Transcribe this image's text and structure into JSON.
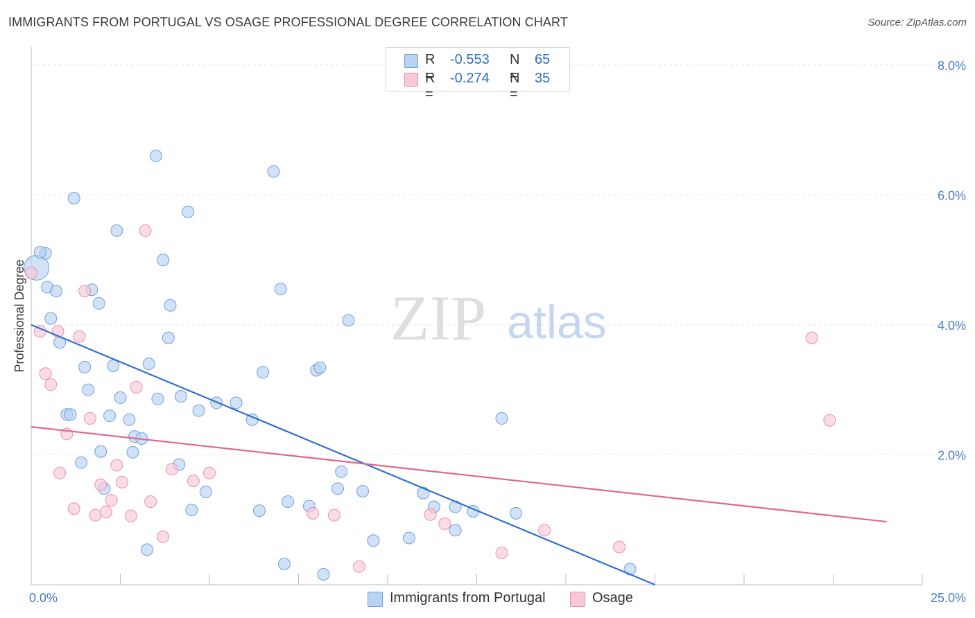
{
  "header": {
    "title": "IMMIGRANTS FROM PORTUGAL VS OSAGE PROFESSIONAL DEGREE CORRELATION CHART",
    "source": "Source: ZipAtlas.com"
  },
  "watermark": {
    "zip": "ZIP",
    "atlas": "atlas"
  },
  "legend": {
    "rows": [
      {
        "r_label": "R =",
        "r_value": "-0.553",
        "n_label": "N =",
        "n_value": "65",
        "color": "#b9d3f3",
        "edge": "#6f9fe0"
      },
      {
        "r_label": "R =",
        "r_value": "-0.274",
        "n_label": "N =",
        "n_value": "35",
        "color": "#f9c8d8",
        "edge": "#e891ae"
      }
    ]
  },
  "chart_data": {
    "type": "scatter",
    "title": "IMMIGRANTS FROM PORTUGAL VS OSAGE PROFESSIONAL DEGREE CORRELATION CHART",
    "xlabel": "",
    "ylabel": "Professional Degree",
    "xlim": [
      0,
      25
    ],
    "ylim": [
      0,
      8.2
    ],
    "x_tick_labels": [
      "0.0%",
      "25.0%"
    ],
    "y_ticks": [
      2,
      4,
      6,
      8
    ],
    "y_tick_labels": [
      "2.0%",
      "4.0%",
      "6.0%",
      "8.0%"
    ],
    "grid": true,
    "legend_position": "top-center",
    "series": [
      {
        "name": "Immigrants from Portugal",
        "color": "#b9d3f3",
        "edge": "#6f9fe0",
        "trend_color": "#2f6fd1",
        "trend": {
          "x": [
            0,
            17.5
          ],
          "y": [
            4.0,
            0.0
          ]
        },
        "points": [
          [
            0.15,
            4.88
          ],
          [
            0.4,
            5.1
          ],
          [
            0.25,
            5.12
          ],
          [
            1.2,
            5.95
          ],
          [
            3.5,
            6.6
          ],
          [
            6.8,
            6.36
          ],
          [
            4.4,
            5.74
          ],
          [
            2.4,
            5.45
          ],
          [
            3.7,
            5.0
          ],
          [
            0.45,
            4.58
          ],
          [
            0.7,
            4.52
          ],
          [
            1.7,
            4.54
          ],
          [
            1.9,
            4.33
          ],
          [
            7.0,
            4.55
          ],
          [
            0.55,
            4.1
          ],
          [
            3.9,
            4.3
          ],
          [
            8.9,
            4.07
          ],
          [
            0.8,
            3.73
          ],
          [
            3.85,
            3.8
          ],
          [
            1.5,
            3.35
          ],
          [
            2.3,
            3.37
          ],
          [
            3.3,
            3.4
          ],
          [
            6.5,
            3.27
          ],
          [
            8.0,
            3.3
          ],
          [
            8.1,
            3.34
          ],
          [
            1.6,
            3.0
          ],
          [
            2.5,
            2.88
          ],
          [
            3.55,
            2.86
          ],
          [
            4.2,
            2.9
          ],
          [
            5.2,
            2.8
          ],
          [
            5.75,
            2.8
          ],
          [
            1.0,
            2.62
          ],
          [
            1.1,
            2.62
          ],
          [
            2.2,
            2.6
          ],
          [
            2.75,
            2.54
          ],
          [
            4.7,
            2.68
          ],
          [
            6.2,
            2.54
          ],
          [
            13.2,
            2.56
          ],
          [
            2.9,
            2.28
          ],
          [
            3.1,
            2.25
          ],
          [
            1.95,
            2.05
          ],
          [
            2.85,
            2.04
          ],
          [
            1.4,
            1.88
          ],
          [
            4.15,
            1.85
          ],
          [
            8.7,
            1.74
          ],
          [
            2.05,
            1.48
          ],
          [
            4.9,
            1.43
          ],
          [
            8.6,
            1.48
          ],
          [
            9.3,
            1.44
          ],
          [
            11.0,
            1.41
          ],
          [
            7.2,
            1.28
          ],
          [
            7.8,
            1.21
          ],
          [
            11.3,
            1.2
          ],
          [
            11.9,
            1.2
          ],
          [
            4.5,
            1.15
          ],
          [
            6.4,
            1.14
          ],
          [
            12.4,
            1.13
          ],
          [
            13.6,
            1.1
          ],
          [
            11.9,
            0.84
          ],
          [
            9.6,
            0.68
          ],
          [
            10.6,
            0.72
          ],
          [
            3.25,
            0.54
          ],
          [
            7.1,
            0.32
          ],
          [
            8.2,
            0.16
          ],
          [
            16.8,
            0.24
          ]
        ]
      },
      {
        "name": "Osage",
        "color": "#f9c8d8",
        "edge": "#e891ae",
        "trend_color": "#e0668f",
        "trend": {
          "x": [
            0,
            24
          ],
          "y": [
            2.43,
            0.97
          ]
        },
        "points": [
          [
            0.0,
            4.8
          ],
          [
            3.2,
            5.45
          ],
          [
            1.5,
            4.52
          ],
          [
            0.25,
            3.9
          ],
          [
            0.75,
            3.9
          ],
          [
            1.35,
            3.82
          ],
          [
            0.4,
            3.25
          ],
          [
            0.55,
            3.08
          ],
          [
            2.95,
            3.04
          ],
          [
            1.65,
            2.56
          ],
          [
            1.0,
            2.32
          ],
          [
            2.4,
            1.84
          ],
          [
            0.8,
            1.72
          ],
          [
            3.95,
            1.78
          ],
          [
            5.0,
            1.72
          ],
          [
            1.95,
            1.54
          ],
          [
            2.55,
            1.58
          ],
          [
            4.55,
            1.6
          ],
          [
            1.2,
            1.17
          ],
          [
            2.25,
            1.3
          ],
          [
            3.35,
            1.28
          ],
          [
            1.8,
            1.07
          ],
          [
            2.1,
            1.12
          ],
          [
            2.8,
            1.06
          ],
          [
            7.9,
            1.1
          ],
          [
            8.5,
            1.07
          ],
          [
            11.2,
            1.08
          ],
          [
            11.6,
            0.94
          ],
          [
            3.7,
            0.74
          ],
          [
            14.4,
            0.84
          ],
          [
            13.2,
            0.49
          ],
          [
            16.5,
            0.58
          ],
          [
            9.2,
            0.28
          ],
          [
            21.9,
            3.8
          ],
          [
            22.4,
            2.53
          ]
        ]
      }
    ]
  }
}
